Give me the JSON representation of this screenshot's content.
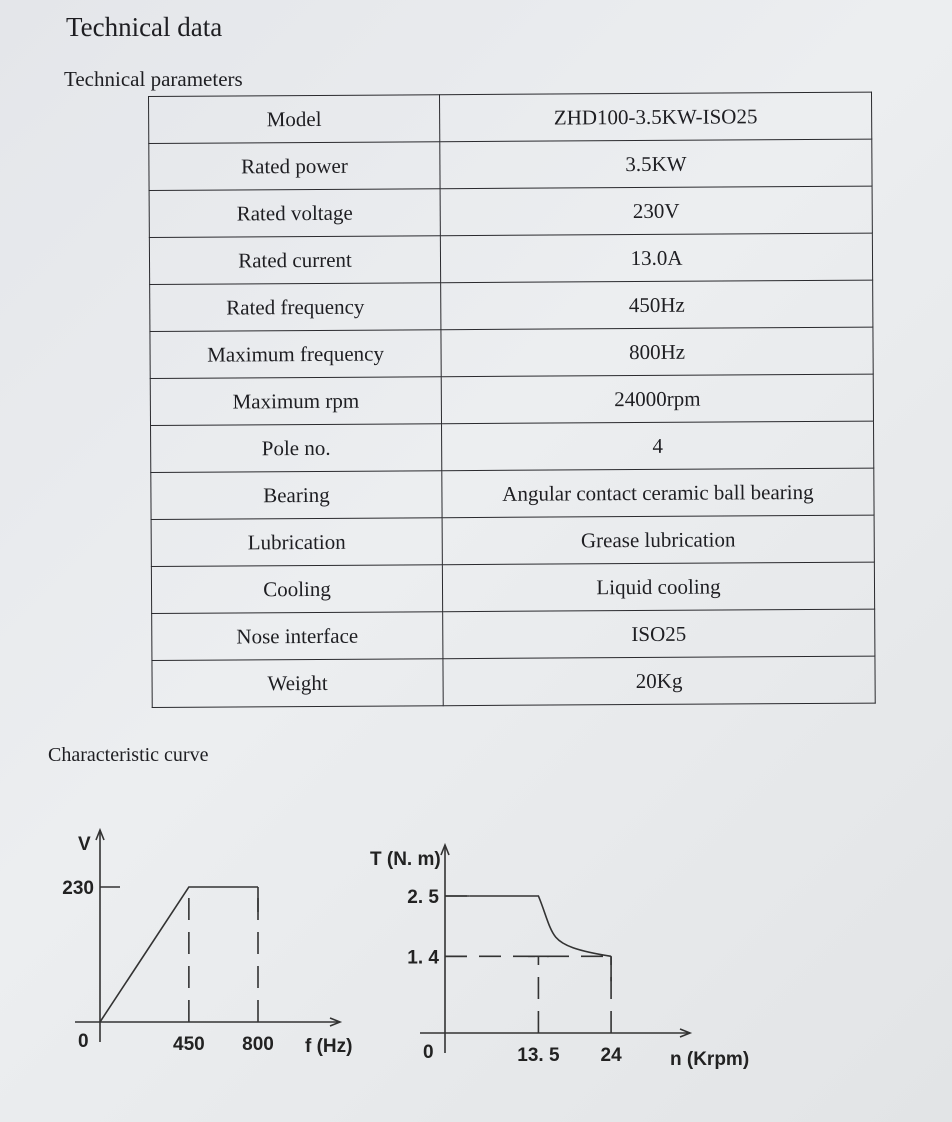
{
  "title": "Technical data",
  "section_params": "Technical parameters",
  "params": [
    {
      "k": "Model",
      "v": "ZHD100-3.5KW-ISO25"
    },
    {
      "k": "Rated power",
      "v": "3.5KW"
    },
    {
      "k": "Rated voltage",
      "v": "230V"
    },
    {
      "k": "Rated current",
      "v": "13.0A"
    },
    {
      "k": "Rated frequency",
      "v": "450Hz"
    },
    {
      "k": "Maximum frequency",
      "v": "800Hz"
    },
    {
      "k": "Maximum rpm",
      "v": "24000rpm"
    },
    {
      "k": "Pole no.",
      "v": "4"
    },
    {
      "k": "Bearing",
      "v": "Angular contact ceramic ball bearing"
    },
    {
      "k": "Lubrication",
      "v": "Grease lubrication"
    },
    {
      "k": "Cooling",
      "v": "Liquid cooling"
    },
    {
      "k": "Nose interface",
      "v": "ISO25"
    },
    {
      "k": "Weight",
      "v": "20Kg"
    }
  ],
  "section_curve": "Characteristic curve",
  "chart_data": [
    {
      "type": "line",
      "ylabel": "V",
      "xlabel": "f (Hz)",
      "origin_label": "0",
      "xticks": [
        450,
        800
      ],
      "xtick_labels": [
        "450",
        "800"
      ],
      "yticks": [
        230
      ],
      "ytick_labels": [
        "230"
      ],
      "series": [
        {
          "x": [
            0,
            450,
            800,
            800
          ],
          "y": [
            0,
            230,
            230,
            0
          ]
        }
      ]
    },
    {
      "type": "line",
      "ylabel": "T (N. m)",
      "xlabel": "n (Krpm)",
      "origin_label": "0",
      "xticks": [
        13.5,
        24
      ],
      "xtick_labels": [
        "13. 5",
        "24"
      ],
      "yticks": [
        2.5,
        1.4
      ],
      "ytick_labels": [
        "2. 5",
        "1. 4"
      ],
      "series": [
        {
          "x": [
            3.5,
            13.5,
            15,
            18,
            24,
            24
          ],
          "y": [
            2.5,
            2.5,
            1.95,
            1.55,
            1.4,
            0
          ]
        }
      ]
    }
  ]
}
